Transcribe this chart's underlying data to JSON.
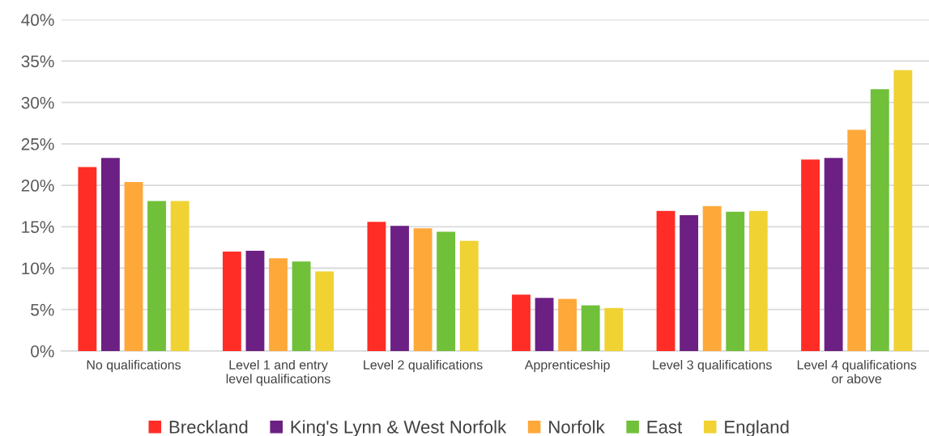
{
  "chart_data": {
    "type": "bar",
    "categories": [
      "No qualifications",
      "Level 1 and entry\nlevel qualifications",
      "Level 2 qualifications",
      "Apprenticeship",
      "Level 3 qualifications",
      "Level 4 qualifications\nor above"
    ],
    "series": [
      {
        "name": "Breckland",
        "color": "#ff2d26",
        "values": [
          22.2,
          12.0,
          15.6,
          6.8,
          16.9,
          23.1
        ]
      },
      {
        "name": "King's Lynn & West Norfolk",
        "color": "#6c2083",
        "values": [
          23.3,
          12.1,
          15.1,
          6.4,
          16.4,
          23.3
        ]
      },
      {
        "name": "Norfolk",
        "color": "#ffa83a",
        "values": [
          20.4,
          11.2,
          14.8,
          6.3,
          17.5,
          26.7
        ]
      },
      {
        "name": "East",
        "color": "#70c03a",
        "values": [
          18.1,
          10.8,
          14.4,
          5.5,
          16.8,
          31.6
        ]
      },
      {
        "name": "England",
        "color": "#f0d232",
        "values": [
          18.1,
          9.6,
          13.3,
          5.2,
          16.9,
          33.9
        ]
      }
    ],
    "ylim": [
      0,
      40
    ],
    "yticks": [
      {
        "value": 0,
        "label": "0%"
      },
      {
        "value": 5,
        "label": "5%"
      },
      {
        "value": 10,
        "label": "10%"
      },
      {
        "value": 15,
        "label": "15%"
      },
      {
        "value": 20,
        "label": "20%"
      },
      {
        "value": 25,
        "label": "25%"
      },
      {
        "value": 30,
        "label": "30%"
      },
      {
        "value": 35,
        "label": "35%"
      },
      {
        "value": 40,
        "label": "40%"
      }
    ],
    "grid": "y",
    "legend": "bottom"
  }
}
